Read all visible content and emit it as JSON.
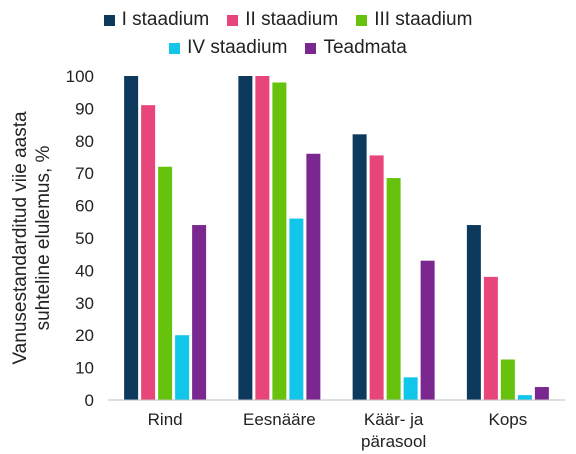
{
  "chart_data": {
    "type": "bar",
    "title": "",
    "ylabel": [
      "Vanusestandarditud viie aasta",
      "suhteline elulemus, %"
    ],
    "xlabel": "",
    "ylim": [
      0,
      100
    ],
    "yticks": [
      0,
      10,
      20,
      30,
      40,
      50,
      60,
      70,
      80,
      90,
      100
    ],
    "grid": false,
    "legend_position": "top",
    "categories": [
      [
        "Rind"
      ],
      [
        "Eesnääre"
      ],
      [
        "Käär- ja",
        "pärasool"
      ],
      [
        "Kops"
      ]
    ],
    "series": [
      {
        "name": "I staadium",
        "color": "#0d3a5c",
        "values": [
          100,
          100,
          82,
          54
        ]
      },
      {
        "name": "II staadium",
        "color": "#e8457a",
        "values": [
          91,
          100,
          75.5,
          38
        ]
      },
      {
        "name": "III staadium",
        "color": "#66c20c",
        "values": [
          72,
          98,
          68.5,
          12.5
        ]
      },
      {
        "name": "IV staadium",
        "color": "#12c6ea",
        "values": [
          20,
          56,
          7,
          1.5
        ]
      },
      {
        "name": "Teadmata",
        "color": "#7a2890",
        "values": [
          54,
          76,
          43,
          4
        ]
      }
    ]
  }
}
